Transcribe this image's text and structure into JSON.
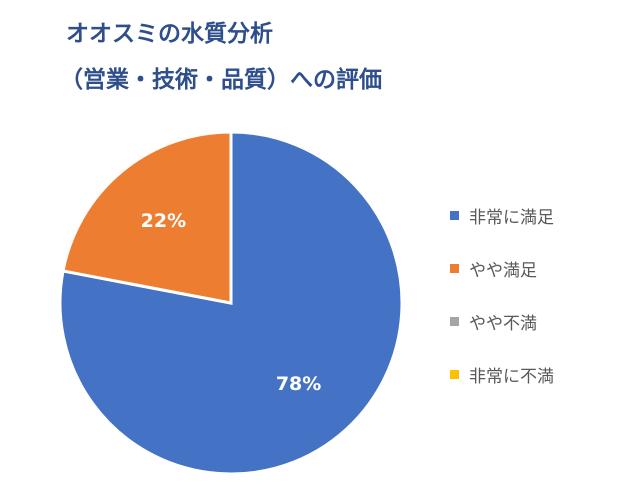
{
  "chart_data": {
    "type": "pie",
    "title_lines": [
      "オオスミの水質分析",
      "（営業・技術・品質）への評価"
    ],
    "categories": [
      "非常に満足",
      "やや満足",
      "やや不満",
      "非常に不満"
    ],
    "values": [
      78,
      22,
      0,
      0
    ],
    "data_labels": [
      "78%",
      "22%",
      "",
      ""
    ],
    "colors": [
      "#4472c4",
      "#ed7d31",
      "#a5a5a5",
      "#ffc000"
    ],
    "legend_position": "right"
  }
}
